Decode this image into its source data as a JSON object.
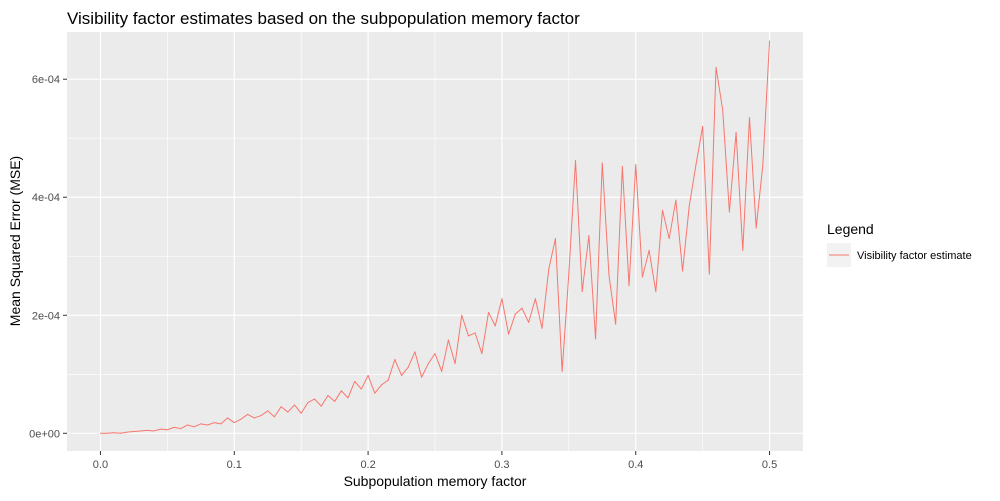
{
  "chart_data": {
    "type": "line",
    "title": "Visibility factor estimates based on the subpopulation memory factor",
    "xlabel": "Subpopulation memory factor",
    "ylabel": "Mean Squared Error (MSE)",
    "xlim": [
      -0.025,
      0.525
    ],
    "ylim": [
      -3e-05,
      0.00068
    ],
    "x_ticks": [
      0.0,
      0.1,
      0.2,
      0.3,
      0.4,
      0.5
    ],
    "x_tick_labels": [
      "0.0",
      "0.1",
      "0.2",
      "0.3",
      "0.4",
      "0.5"
    ],
    "y_ticks": [
      0,
      0.0002,
      0.0004,
      0.0006
    ],
    "y_tick_labels": [
      "0e+00",
      "2e-04",
      "4e-04",
      "6e-04"
    ],
    "grid": true,
    "legend": {
      "title": "Legend",
      "position": "right"
    },
    "colors": {
      "panel": "#ebebeb",
      "grid": "#ffffff",
      "line": "#f8766d"
    },
    "series": [
      {
        "name": "Visibility factor estimate",
        "x": [
          0.0,
          0.005,
          0.01,
          0.015,
          0.02,
          0.025,
          0.03,
          0.035,
          0.04,
          0.045,
          0.05,
          0.055,
          0.06,
          0.065,
          0.07,
          0.075,
          0.08,
          0.085,
          0.09,
          0.095,
          0.1,
          0.105,
          0.11,
          0.115,
          0.12,
          0.125,
          0.13,
          0.135,
          0.14,
          0.145,
          0.15,
          0.155,
          0.16,
          0.165,
          0.17,
          0.175,
          0.18,
          0.185,
          0.19,
          0.195,
          0.2,
          0.205,
          0.21,
          0.215,
          0.22,
          0.225,
          0.23,
          0.235,
          0.24,
          0.245,
          0.25,
          0.255,
          0.26,
          0.265,
          0.27,
          0.275,
          0.28,
          0.285,
          0.29,
          0.295,
          0.3,
          0.305,
          0.31,
          0.315,
          0.32,
          0.325,
          0.33,
          0.335,
          0.34,
          0.345,
          0.35,
          0.355,
          0.36,
          0.365,
          0.37,
          0.375,
          0.38,
          0.385,
          0.39,
          0.395,
          0.4,
          0.405,
          0.41,
          0.415,
          0.42,
          0.425,
          0.43,
          0.435,
          0.44,
          0.445,
          0.45,
          0.455,
          0.46,
          0.465,
          0.47,
          0.475,
          0.48,
          0.485,
          0.49,
          0.495,
          0.5
        ],
        "values": [
          0.0,
          0.0,
          1e-06,
          0.0,
          2e-06,
          3e-06,
          4e-06,
          5e-06,
          4e-06,
          7e-06,
          6e-06,
          1e-05,
          8e-06,
          1.4e-05,
          1.1e-05,
          1.6e-05,
          1.4e-05,
          1.8e-05,
          1.6e-05,
          2.6e-05,
          1.8e-05,
          2.4e-05,
          3.2e-05,
          2.6e-05,
          3e-05,
          3.8e-05,
          2.8e-05,
          4.5e-05,
          3.6e-05,
          4.8e-05,
          3.4e-05,
          5.2e-05,
          5.8e-05,
          4.6e-05,
          6.4e-05,
          5.4e-05,
          7.2e-05,
          6e-05,
          8.8e-05,
          7.5e-05,
          9.8e-05,
          6.8e-05,
          8.2e-05,
          9e-05,
          0.000125,
          9.8e-05,
          0.000112,
          0.000138,
          9.5e-05,
          0.000118,
          0.000135,
          0.000105,
          0.000158,
          0.000118,
          0.0002,
          0.000165,
          0.00017,
          0.000135,
          0.000205,
          0.000182,
          0.000228,
          0.000168,
          0.000202,
          0.000212,
          0.000188,
          0.000228,
          0.000178,
          0.000278,
          0.00033,
          0.000105,
          0.00027,
          0.000462,
          0.00024,
          0.000335,
          0.00016,
          0.000458,
          0.000268,
          0.000185,
          0.000452,
          0.00025,
          0.000455,
          0.000265,
          0.00031,
          0.00024,
          0.000378,
          0.00033,
          0.000395,
          0.000275,
          0.000385,
          0.000455,
          0.00052,
          0.00027,
          0.00062,
          0.000548,
          0.000375,
          0.00051,
          0.00031,
          0.000535,
          0.000348,
          0.000455,
          0.000665
        ]
      }
    ]
  }
}
